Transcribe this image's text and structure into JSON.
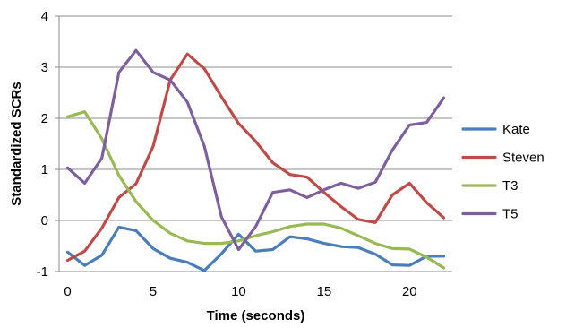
{
  "chart_data": {
    "type": "line",
    "title": "",
    "xlabel": "Time (seconds)",
    "ylabel": "Standardized SCRs",
    "xlim": [
      -0.5,
      22.5
    ],
    "ylim": [
      -1,
      4
    ],
    "xticks": [
      0,
      5,
      10,
      15,
      20
    ],
    "yticks": [
      -1,
      0,
      1,
      2,
      3,
      4
    ],
    "grid": "horizontal",
    "legend_position": "right",
    "x": [
      0,
      1,
      2,
      3,
      4,
      5,
      6,
      7,
      8,
      9,
      10,
      11,
      12,
      13,
      14,
      15,
      16,
      17,
      18,
      19,
      20,
      21,
      22
    ],
    "series": [
      {
        "name": "Kate",
        "color": "#4a7ebb",
        "values": [
          -0.62,
          -0.88,
          -0.68,
          -0.13,
          -0.2,
          -0.55,
          -0.74,
          -0.82,
          -0.98,
          -0.65,
          -0.27,
          -0.6,
          -0.57,
          -0.32,
          -0.36,
          -0.45,
          -0.51,
          -0.53,
          -0.66,
          -0.87,
          -0.88,
          -0.7,
          -0.7
        ]
      },
      {
        "name": "Steven",
        "color": "#be4b48",
        "values": [
          -0.78,
          -0.6,
          -0.15,
          0.45,
          0.72,
          1.45,
          2.75,
          3.26,
          2.97,
          2.42,
          1.9,
          1.55,
          1.13,
          0.9,
          0.85,
          0.55,
          0.27,
          0.02,
          -0.04,
          0.5,
          0.73,
          0.35,
          0.05
        ]
      },
      {
        "name": "T3",
        "color": "#98b954",
        "values": [
          2.03,
          2.13,
          1.6,
          0.88,
          0.37,
          0.0,
          -0.25,
          -0.4,
          -0.45,
          -0.45,
          -0.4,
          -0.3,
          -0.22,
          -0.12,
          -0.07,
          -0.07,
          -0.15,
          -0.3,
          -0.45,
          -0.55,
          -0.56,
          -0.72,
          -0.93
        ]
      },
      {
        "name": "T5",
        "color": "#7d5fa0",
        "values": [
          1.03,
          0.73,
          1.22,
          2.9,
          3.33,
          2.9,
          2.75,
          2.32,
          1.45,
          0.07,
          -0.57,
          -0.12,
          0.55,
          0.6,
          0.45,
          0.6,
          0.73,
          0.63,
          0.75,
          1.38,
          1.87,
          1.92,
          2.4
        ]
      }
    ]
  }
}
